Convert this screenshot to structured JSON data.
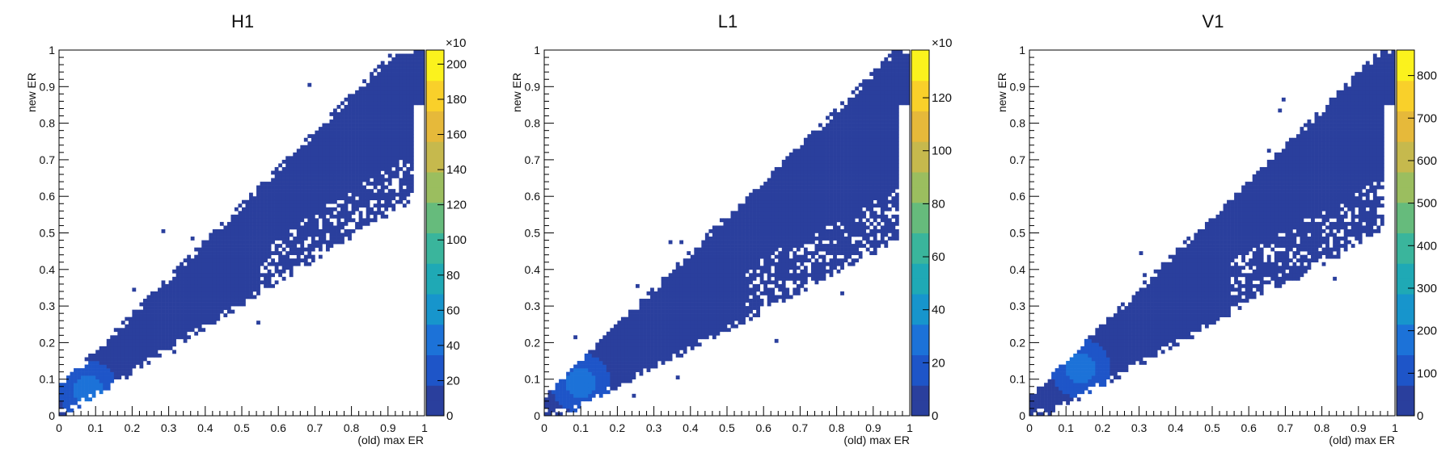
{
  "chart_data": [
    {
      "type": "heatmap",
      "title": "H1",
      "xlabel": "(old) max ER",
      "ylabel": "new ER",
      "xlim": [
        0,
        1
      ],
      "ylim": [
        0,
        1
      ],
      "x_ticks": [
        "0",
        "0.1",
        "0.2",
        "0.3",
        "0.4",
        "0.5",
        "0.6",
        "0.7",
        "0.8",
        "0.9",
        "1"
      ],
      "y_ticks": [
        "0",
        "0.1",
        "0.2",
        "0.3",
        "0.4",
        "0.5",
        "0.6",
        "0.7",
        "0.8",
        "0.9",
        "1"
      ],
      "colorbar": {
        "multiplier": "×10",
        "ticks": [
          "0",
          "20",
          "40",
          "60",
          "80",
          "100",
          "120",
          "140",
          "160",
          "180",
          "200"
        ],
        "max": 208
      },
      "band": {
        "slope_low": 0.62,
        "slope_high": 1.0,
        "offset_low": 0.02,
        "offset_high": 0.06,
        "peak_x": 0.08,
        "peak_y": 0.07
      }
    },
    {
      "type": "heatmap",
      "title": "L1",
      "xlabel": "(old) max ER",
      "ylabel": "new ER",
      "xlim": [
        0,
        1
      ],
      "ylim": [
        0,
        1
      ],
      "x_ticks": [
        "0",
        "0.1",
        "0.2",
        "0.3",
        "0.4",
        "0.5",
        "0.6",
        "0.7",
        "0.8",
        "0.9",
        "1"
      ],
      "y_ticks": [
        "0",
        "0.1",
        "0.2",
        "0.3",
        "0.4",
        "0.5",
        "0.6",
        "0.7",
        "0.8",
        "0.9",
        "1"
      ],
      "colorbar": {
        "multiplier": "×10",
        "ticks": [
          "0",
          "20",
          "40",
          "60",
          "80",
          "100",
          "120"
        ],
        "max": 138
      },
      "band": {
        "slope_low": 0.52,
        "slope_high": 0.98,
        "offset_low": 0.0,
        "offset_high": 0.04,
        "peak_x": 0.1,
        "peak_y": 0.09
      }
    },
    {
      "type": "heatmap",
      "title": "V1",
      "xlabel": "(old) max ER",
      "ylabel": "new ER",
      "xlim": [
        0,
        1
      ],
      "ylim": [
        0,
        1
      ],
      "x_ticks": [
        "0",
        "0.1",
        "0.2",
        "0.3",
        "0.4",
        "0.5",
        "0.6",
        "0.7",
        "0.8",
        "0.9",
        "1"
      ],
      "y_ticks": [
        "0",
        "0.1",
        "0.2",
        "0.3",
        "0.4",
        "0.5",
        "0.6",
        "0.7",
        "0.8",
        "0.9",
        "1"
      ],
      "colorbar": {
        "multiplier": "",
        "ticks": [
          "0",
          "100",
          "200",
          "300",
          "400",
          "500",
          "600",
          "700",
          "800"
        ],
        "max": 860
      },
      "band": {
        "slope_low": 0.55,
        "slope_high": 0.98,
        "offset_low": 0.0,
        "offset_high": 0.04,
        "peak_x": 0.14,
        "peak_y": 0.13
      }
    }
  ],
  "palette": [
    "#2a3f9d",
    "#1e55c8",
    "#1c72d8",
    "#1795cc",
    "#1fa9b5",
    "#3ab59c",
    "#66bb7c",
    "#9bbe5f",
    "#c6b94d",
    "#e6b93a",
    "#f9d02a",
    "#fbf21d"
  ]
}
